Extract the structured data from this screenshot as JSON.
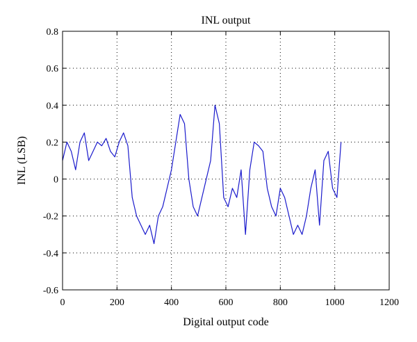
{
  "chart_data": {
    "type": "line",
    "title": "INL output",
    "xlabel": "Digital output code",
    "ylabel": "INL (LSB)",
    "xlim": [
      0,
      1200
    ],
    "ylim": [
      -0.6,
      0.8
    ],
    "xticks": [
      0,
      200,
      400,
      600,
      800,
      1000,
      1200
    ],
    "yticks": [
      -0.6,
      -0.4,
      -0.2,
      0,
      0.2,
      0.4,
      0.6,
      0.8
    ],
    "xtick_labels": [
      "0",
      "200",
      "400",
      "600",
      "800",
      "1000",
      "1200"
    ],
    "ytick_labels": [
      "-0.6",
      "-0.4",
      "-0.2",
      "0",
      "0.2",
      "0.4",
      "0.6",
      "0.8"
    ],
    "grid": true,
    "grid_style": "dotted",
    "line_color": "#1a1acc",
    "series": [
      {
        "x": [
          0,
          16,
          32,
          48,
          64,
          80,
          96,
          112,
          128,
          144,
          160,
          176,
          192,
          208,
          224,
          240,
          256,
          272,
          288,
          304,
          320,
          336,
          352,
          368,
          384,
          400,
          416,
          432,
          448,
          464,
          480,
          496,
          512,
          528,
          544,
          560,
          576,
          592,
          608,
          624,
          640,
          656,
          672,
          688,
          704,
          720,
          736,
          752,
          768,
          784,
          800,
          816,
          832,
          848,
          864,
          880,
          896,
          912,
          928,
          944,
          960,
          976,
          992,
          1008,
          1023
        ],
        "y": [
          0.1,
          0.2,
          0.15,
          0.05,
          0.2,
          0.25,
          0.1,
          0.15,
          0.2,
          0.18,
          0.22,
          0.15,
          0.12,
          0.2,
          0.25,
          0.18,
          -0.1,
          -0.2,
          -0.25,
          -0.3,
          -0.25,
          -0.35,
          -0.2,
          -0.15,
          -0.05,
          0.05,
          0.2,
          0.35,
          0.3,
          0.0,
          -0.15,
          -0.2,
          -0.1,
          0.0,
          0.1,
          0.4,
          0.3,
          -0.1,
          -0.15,
          -0.05,
          -0.1,
          0.05,
          -0.3,
          0.05,
          0.2,
          0.18,
          0.15,
          -0.05,
          -0.15,
          -0.2,
          -0.05,
          -0.1,
          -0.2,
          -0.3,
          -0.25,
          -0.3,
          -0.2,
          -0.05,
          0.05,
          -0.25,
          0.1,
          0.15,
          -0.05,
          -0.1,
          0.2
        ]
      }
    ]
  }
}
